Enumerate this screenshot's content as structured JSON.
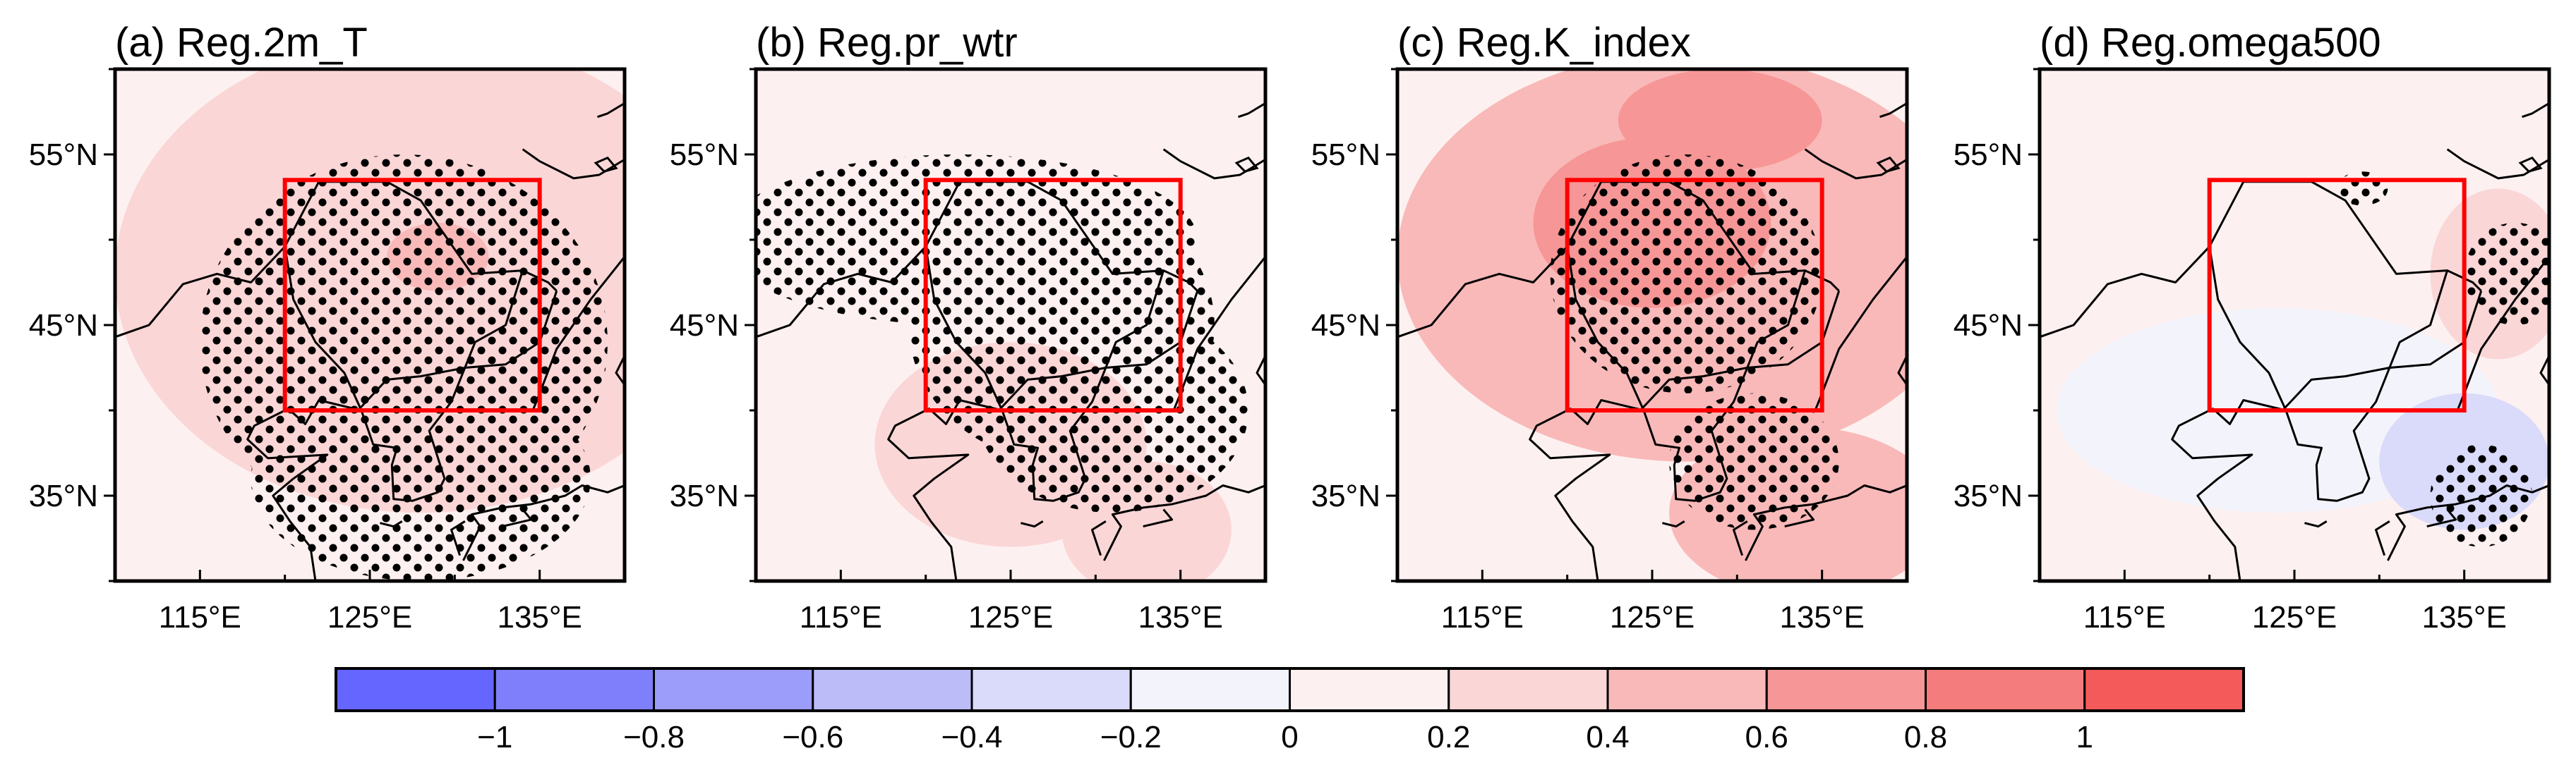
{
  "chart_data": {
    "type": "contour-map",
    "panels": [
      {
        "title": "(a) Reg.2m_T",
        "blobs": [
          {
            "lon": 128,
            "lat": 48,
            "rlon": 18,
            "rlat": 14,
            "value": 0.2
          },
          {
            "lon": 129,
            "lat": 46,
            "rlon": 12,
            "rlat": 10,
            "value": 0.3
          },
          {
            "lon": 129,
            "lat": 49,
            "rlon": 3,
            "rlat": 2,
            "value": 0.45
          }
        ],
        "stipple": [
          {
            "lon": 127,
            "lat": 44,
            "rlon": 12,
            "rlat": 11
          },
          {
            "lon": 128,
            "lat": 36,
            "rlon": 10,
            "rlat": 6
          }
        ]
      },
      {
        "title": "(b) Reg.pr_wtr",
        "blobs": [
          {
            "lon": 125,
            "lat": 38,
            "rlon": 8,
            "rlat": 6,
            "value": 0.25
          },
          {
            "lon": 133,
            "lat": 33,
            "rlon": 5,
            "rlat": 4,
            "value": 0.3
          }
        ],
        "stipple": [
          {
            "lon": 122,
            "lat": 50,
            "rlon": 14,
            "rlat": 5
          },
          {
            "lon": 128,
            "lat": 45,
            "rlon": 9,
            "rlat": 8
          },
          {
            "lon": 131,
            "lat": 40,
            "rlon": 8,
            "rlat": 6
          }
        ]
      },
      {
        "title": "(c) Reg.K_index",
        "blobs": [
          {
            "lon": 127,
            "lat": 49,
            "rlon": 17,
            "rlat": 12,
            "value": 0.45
          },
          {
            "lon": 125,
            "lat": 51,
            "rlon": 7,
            "rlat": 5,
            "value": 0.65
          },
          {
            "lon": 129,
            "lat": 57,
            "rlon": 6,
            "rlat": 3,
            "value": 0.65
          },
          {
            "lon": 134,
            "lat": 34,
            "rlon": 8,
            "rlat": 5,
            "value": 0.55
          }
        ],
        "stipple": [
          {
            "lon": 127,
            "lat": 48,
            "rlon": 8,
            "rlat": 7
          },
          {
            "lon": 131,
            "lat": 37,
            "rlon": 5,
            "rlat": 4
          }
        ]
      },
      {
        "title": "(d) Reg.omega500",
        "blobs": [
          {
            "lon": 124,
            "lat": 40,
            "rlon": 13,
            "rlat": 6,
            "value": -0.15
          },
          {
            "lon": 135,
            "lat": 37,
            "rlon": 5,
            "rlat": 4,
            "value": -0.3
          },
          {
            "lon": 137,
            "lat": 48,
            "rlon": 4,
            "rlat": 5,
            "value": 0.3
          }
        ],
        "stipple": [
          {
            "lon": 138,
            "lat": 48,
            "rlon": 3,
            "rlat": 3
          },
          {
            "lon": 136,
            "lat": 35,
            "rlon": 3,
            "rlat": 3
          },
          {
            "lon": 129,
            "lat": 53,
            "rlon": 1.5,
            "rlat": 1
          }
        ]
      }
    ],
    "lon_range": [
      110,
      140
    ],
    "lat_range": [
      30,
      60
    ],
    "x_ticks": [
      "115°E",
      "125°E",
      "135°E"
    ],
    "x_tick_values": [
      115,
      125,
      135
    ],
    "y_ticks": [
      "55°N",
      "45°N",
      "35°N"
    ],
    "y_tick_values": [
      55,
      45,
      35
    ],
    "box": {
      "lon": [
        120,
        135
      ],
      "lat": [
        40,
        53.5
      ]
    },
    "colorbar": {
      "labels": [
        "−1",
        "−0.8",
        "−0.6",
        "−0.4",
        "−0.2",
        "0",
        "0.2",
        "0.4",
        "0.6",
        "0.8",
        "1"
      ],
      "levels": [
        -1,
        -0.8,
        -0.6,
        -0.4,
        -0.2,
        0,
        0.2,
        0.4,
        0.6,
        0.8,
        1
      ],
      "colors": [
        "#6565ff",
        "#7f7ffc",
        "#9c9cfb",
        "#bcbcf9",
        "#dadafa",
        "#f3f3fb",
        "#fdf0f0",
        "#fbd6d6",
        "#f9b9b9",
        "#f79696",
        "#f57c7c",
        "#f55a5a"
      ]
    }
  }
}
